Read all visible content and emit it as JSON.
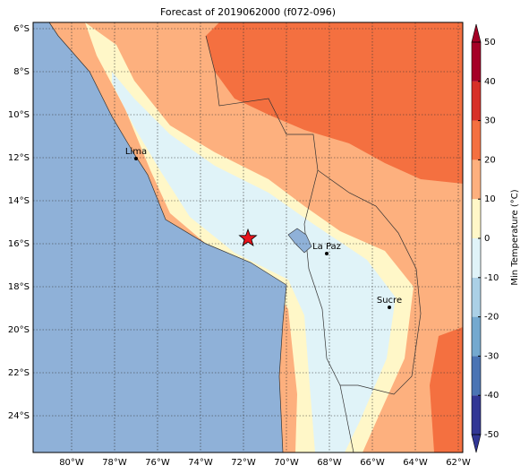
{
  "map": {
    "title": "Forecast of 2019062000 (f072-096)",
    "lon_ticks": [
      {
        "value": -80,
        "label": "80°W"
      },
      {
        "value": -78,
        "label": "78°W"
      },
      {
        "value": -76,
        "label": "76°W"
      },
      {
        "value": -74,
        "label": "74°W"
      },
      {
        "value": -72,
        "label": "72°W"
      },
      {
        "value": -70,
        "label": "70°W"
      },
      {
        "value": -68,
        "label": "68°W"
      },
      {
        "value": -66,
        "label": "66°W"
      },
      {
        "value": -64,
        "label": "64°W"
      },
      {
        "value": -62,
        "label": "62°W"
      }
    ],
    "lat_ticks": [
      {
        "value": -6,
        "label": "6°S"
      },
      {
        "value": -8,
        "label": "8°S"
      },
      {
        "value": -10,
        "label": "10°S"
      },
      {
        "value": -12,
        "label": "12°S"
      },
      {
        "value": -14,
        "label": "14°S"
      },
      {
        "value": -16,
        "label": "16°S"
      },
      {
        "value": -18,
        "label": "18°S"
      },
      {
        "value": -20,
        "label": "20°S"
      },
      {
        "value": -22,
        "label": "22°S"
      },
      {
        "value": -24,
        "label": "24°S"
      }
    ],
    "colorbar": {
      "label": "Min Temperature (°C)",
      "ticks": [
        -50,
        -40,
        -30,
        -20,
        -10,
        0,
        10,
        20,
        30,
        40,
        50
      ],
      "colors": [
        "#313695",
        "#4a74b4",
        "#74a9cf",
        "#abd0e6",
        "#e0f3f8",
        "#fff7c8",
        "#fdb07e",
        "#f47040",
        "#d73027",
        "#a50026"
      ]
    },
    "cities": [
      {
        "name": "Lima"
      },
      {
        "name": "La Paz"
      },
      {
        "name": "Sucre"
      }
    ]
  }
}
